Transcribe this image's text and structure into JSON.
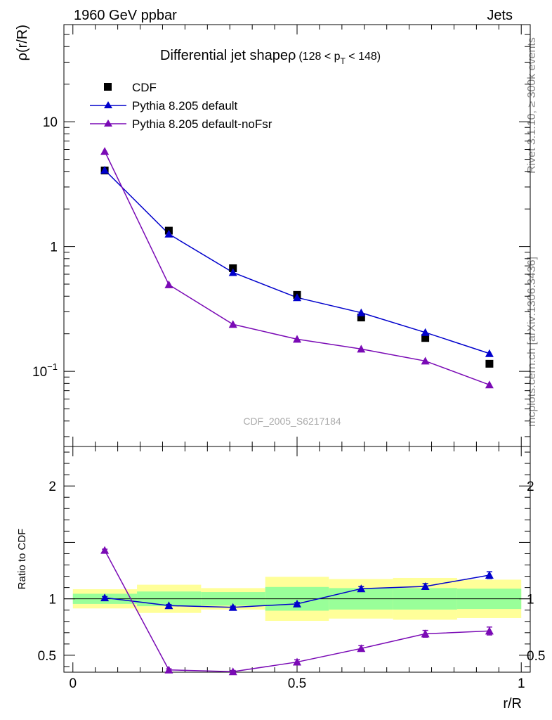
{
  "header": {
    "left": "1960 GeV ppbar",
    "right": "Jets"
  },
  "side_labels": {
    "rivet": "Rivet 3.1.10, ≥ 300k events",
    "mcplots": "mcplots.cern.ch [arXiv:1306.3436]"
  },
  "title": {
    "main": "Differential jet shapeρ",
    "cut": "(128 < p",
    "cut_sub": "T",
    "cut_end": " < 148)"
  },
  "watermark": "CDF_2005_S6217184",
  "legend": {
    "cdf": "CDF",
    "pythia_default": "Pythia 8.205 default",
    "pythia_nofsr": "Pythia 8.205 default-noFsr"
  },
  "axes": {
    "ylabel_top": "ρ(r/R)",
    "ylabel_bottom": "Ratio to CDF",
    "xlabel": "r/R",
    "top_ticks": [
      {
        "label": "10",
        "exp": "",
        "v": 10
      },
      {
        "label": "1",
        "exp": "",
        "v": 1
      },
      {
        "label": "10",
        "exp": "−1",
        "v": 0.1
      }
    ],
    "ratio_ticks": [
      {
        "label": "2",
        "v": 2
      },
      {
        "label": "1",
        "v": 1
      },
      {
        "label": "0.5",
        "v": 0.5
      }
    ],
    "x_ticks": [
      {
        "label": "0",
        "v": 0
      },
      {
        "label": "0.5",
        "v": 0.5
      },
      {
        "label": "1",
        "v": 1
      }
    ]
  },
  "colors": {
    "cdf": "#000000",
    "default": "#0000cc",
    "nofsr": "#7a0ab5",
    "band_inner": "#99ff99",
    "band_outer": "#ffff99"
  },
  "chart_data": {
    "type": "scatter",
    "title": "Differential jet shape ρ (128 < pT < 148)",
    "xlabel": "r/R",
    "ylabel": "ρ(r/R)",
    "xlim": [
      -0.02,
      1.02
    ],
    "ylim": [
      0.025,
      60
    ],
    "ratio_ylim": [
      0.35,
      2.35
    ],
    "x": [
      0.071,
      0.214,
      0.357,
      0.5,
      0.643,
      0.786,
      0.929
    ],
    "bin_edges": [
      0,
      0.143,
      0.286,
      0.429,
      0.571,
      0.714,
      0.857,
      1.0
    ],
    "series": [
      {
        "name": "CDF",
        "key": "cdf",
        "values": [
          4.07,
          1.34,
          0.67,
          0.41,
          0.27,
          0.185,
          0.115
        ]
      },
      {
        "name": "Pythia 8.205 default",
        "key": "default",
        "values": [
          4.1,
          1.26,
          0.62,
          0.39,
          0.295,
          0.205,
          0.139
        ]
      },
      {
        "name": "Pythia 8.205 default-noFsr",
        "key": "nofsr",
        "values": [
          5.8,
          0.495,
          0.238,
          0.181,
          0.151,
          0.121,
          0.078
        ]
      }
    ],
    "ratios": [
      {
        "key": "default",
        "values": [
          1.01,
          0.94,
          0.925,
          0.955,
          1.09,
          1.11,
          1.21
        ],
        "errors": [
          0.01,
          0.01,
          0.01,
          0.012,
          0.018,
          0.025,
          0.03
        ]
      },
      {
        "key": "nofsr",
        "values": [
          1.43,
          0.37,
          0.355,
          0.44,
          0.56,
          0.69,
          0.715
        ],
        "errors": [
          0.01,
          0.01,
          0.01,
          0.02,
          0.025,
          0.03,
          0.035
        ]
      }
    ],
    "uncertainty_bands": [
      {
        "inner": [
          0.955,
          1.045
        ],
        "outer": [
          0.915,
          1.085
        ]
      },
      {
        "inner": [
          0.935,
          1.065
        ],
        "outer": [
          0.875,
          1.125
        ]
      },
      {
        "inner": [
          0.94,
          1.06
        ],
        "outer": [
          0.905,
          1.095
        ]
      },
      {
        "inner": [
          0.895,
          1.105
        ],
        "outer": [
          0.805,
          1.195
        ]
      },
      {
        "inner": [
          0.905,
          1.095
        ],
        "outer": [
          0.825,
          1.175
        ]
      },
      {
        "inner": [
          0.905,
          1.095
        ],
        "outer": [
          0.815,
          1.185
        ]
      },
      {
        "inner": [
          0.91,
          1.09
        ],
        "outer": [
          0.83,
          1.17
        ]
      }
    ]
  }
}
